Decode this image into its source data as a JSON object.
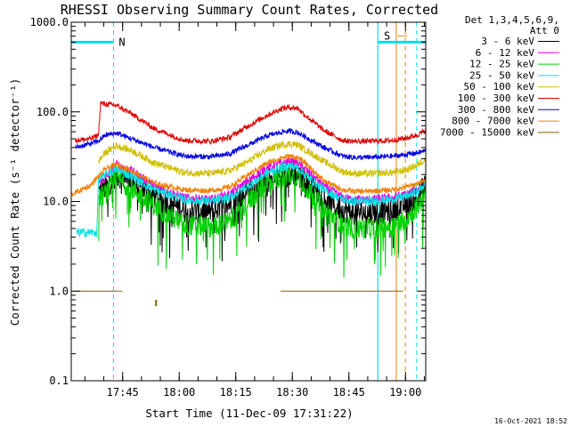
{
  "chart_data": {
    "type": "line",
    "title": "RHESSI Observing Summary Count Rates, Corrected",
    "xlabel": "Start Time (11-Dec-09 17:31:22)",
    "ylabel": "Corrected Count Rate (s⁻¹ detector⁻¹)",
    "yscale": "log",
    "ylim": [
      0.1,
      1000.0
    ],
    "xlim_minutes": [
      0,
      94
    ],
    "x_ticks": [
      {
        "label": "17:45",
        "minutes": 13.63
      },
      {
        "label": "18:00",
        "minutes": 28.63
      },
      {
        "label": "18:15",
        "minutes": 43.63
      },
      {
        "label": "18:30",
        "minutes": 58.63
      },
      {
        "label": "18:45",
        "minutes": 73.63
      },
      {
        "label": "19:00",
        "minutes": 88.63
      }
    ],
    "y_ticks": [
      {
        "label": "0.1",
        "value": 0.1
      },
      {
        "label": "1.0",
        "value": 1.0
      },
      {
        "label": "10.0",
        "value": 10.0
      },
      {
        "label": "100.0",
        "value": 100.0
      },
      {
        "label": "1000.0",
        "value": 1000.0
      }
    ],
    "legend": {
      "header": [
        "Det 1,3,4,5,6,9,",
        "Att 0"
      ],
      "placement": "right"
    },
    "series": [
      {
        "name": "3 - 6 keV",
        "color": "#000000",
        "noise": 0.14,
        "spikes": 0.1,
        "spike_depth": 0.55,
        "x": [
          0,
          6.8,
          7.2,
          9,
          12,
          16,
          22,
          30,
          37,
          42,
          47,
          52,
          56,
          58,
          60,
          62,
          67,
          72,
          75,
          79,
          85,
          89,
          92,
          94
        ],
        "y": [
          null,
          null,
          13,
          14,
          20,
          17,
          11.5,
          8,
          7.8,
          9.5,
          13,
          17,
          19.5,
          20,
          19.5,
          17,
          11,
          8,
          7.5,
          7.5,
          8,
          9.5,
          12,
          15
        ]
      },
      {
        "name": "6 - 12 keV",
        "color": "#e000e0",
        "noise": 0.05,
        "spikes": 0,
        "spike_depth": 0,
        "x": [
          0,
          6.8,
          7.2,
          9,
          12,
          16,
          22,
          30,
          37,
          42,
          47,
          52,
          56,
          58,
          60,
          62,
          67,
          72,
          75,
          79,
          85,
          89,
          92,
          94
        ],
        "y": [
          null,
          null,
          16,
          18,
          26,
          22,
          15,
          11,
          10.5,
          12,
          17,
          24,
          27,
          28,
          27,
          23,
          15,
          11,
          10.5,
          10.5,
          11,
          12,
          14,
          16
        ]
      },
      {
        "name": "12 - 25 keV",
        "color": "#00d000",
        "noise": 0.12,
        "spikes": 0.1,
        "spike_depth": 0.6,
        "x": [
          0,
          6.8,
          7.2,
          9,
          12,
          16,
          22,
          30,
          37,
          42,
          47,
          52,
          56,
          58,
          60,
          62,
          67,
          72,
          75,
          79,
          85,
          89,
          92,
          94
        ],
        "y": [
          null,
          null,
          11,
          12,
          18,
          14,
          9,
          5.5,
          5.2,
          6,
          10,
          16,
          19,
          20,
          19,
          15,
          8,
          5.5,
          5,
          5,
          5.3,
          6.5,
          9,
          13
        ]
      },
      {
        "name": "25 - 50 keV",
        "color": "#00e0e0",
        "noise": 0.05,
        "spikes": 0,
        "spike_depth": 0,
        "x": [
          0,
          1.5,
          6.8,
          7.2,
          9,
          12,
          16,
          22,
          30,
          37,
          42,
          47,
          52,
          56,
          58,
          60,
          62,
          67,
          72,
          75,
          79,
          85,
          89,
          92,
          94
        ],
        "y": [
          null,
          4.5,
          4.5,
          17,
          20,
          23,
          19,
          13.5,
          10.5,
          10,
          11,
          15,
          21,
          24,
          25,
          24,
          20,
          13.5,
          10.5,
          10,
          10,
          10.5,
          11.5,
          13,
          16
        ]
      },
      {
        "name": "50 - 100 keV",
        "color": "#d0c000",
        "noise": 0.04,
        "spikes": 0,
        "spike_depth": 0,
        "x": [
          0,
          6.8,
          7.2,
          9,
          12,
          16,
          22,
          30,
          37,
          42,
          47,
          52,
          56,
          58,
          60,
          62,
          67,
          72,
          75,
          79,
          85,
          89,
          92,
          94
        ],
        "y": [
          null,
          null,
          28,
          35,
          42,
          37,
          27,
          21,
          20.5,
          22,
          28,
          38,
          43,
          44,
          43,
          38,
          28,
          21.5,
          20.5,
          20.5,
          21,
          22.5,
          26,
          30
        ]
      },
      {
        "name": "100 - 300 keV",
        "color": "#e00000",
        "noise": 0.03,
        "spikes": 0,
        "spike_depth": 0,
        "x": [
          0,
          1,
          5,
          7.2,
          7.8,
          9,
          12,
          16,
          22,
          30,
          37,
          42,
          47,
          52,
          56,
          58,
          60,
          62,
          67,
          72,
          75,
          79,
          85,
          89,
          92,
          94
        ],
        "y": [
          null,
          48,
          50,
          55,
          125,
          122,
          118,
          95,
          65,
          48,
          47,
          52,
          70,
          92,
          110,
          112,
          110,
          92,
          62,
          48,
          47,
          47,
          48,
          51,
          56,
          62
        ]
      },
      {
        "name": "300 - 800 keV",
        "color": "#0000e0",
        "noise": 0.03,
        "spikes": 0,
        "spike_depth": 0,
        "x": [
          0,
          1,
          5,
          7.2,
          9,
          12,
          16,
          22,
          30,
          37,
          42,
          47,
          52,
          56,
          58,
          60,
          62,
          67,
          72,
          75,
          79,
          85,
          89,
          92,
          94
        ],
        "y": [
          null,
          40,
          44,
          47,
          55,
          58,
          50,
          40,
          32,
          31.5,
          34,
          43,
          54,
          60,
          61,
          59,
          53,
          40,
          32,
          31,
          31,
          32,
          33.5,
          35,
          37
        ]
      },
      {
        "name": "800 - 7000 keV",
        "color": "#f08000",
        "noise": 0.03,
        "spikes": 0,
        "spike_depth": 0,
        "x": [
          0,
          1,
          5,
          7.2,
          9,
          12,
          16,
          22,
          30,
          37,
          42,
          47,
          52,
          56,
          58,
          60,
          62,
          67,
          72,
          75,
          79,
          85,
          89,
          92,
          94
        ],
        "y": [
          12,
          12.5,
          15,
          19,
          23,
          26,
          22,
          16,
          13.5,
          13.2,
          14.5,
          20,
          27,
          31,
          32,
          31,
          27,
          17,
          13.5,
          13,
          13,
          13.5,
          14.5,
          16,
          17
        ]
      },
      {
        "name": "7000 - 15000 keV",
        "color": "#806000",
        "noise": 0,
        "spikes": 0,
        "spike_depth": 0,
        "x": [
          0,
          0.5,
          13.5,
          48.5,
          55.5,
          88,
          89.5
        ],
        "y": [
          null,
          1.0,
          1.0,
          null,
          1.0,
          1.0,
          null
        ]
      }
    ],
    "annotations": [
      {
        "text": "N",
        "kind": "night",
        "color": "#00e0e0",
        "line_minutes": 11.2,
        "bar_start_minutes": 0,
        "bar_end_minutes": 11.2,
        "level": 600
      },
      {
        "text": "S",
        "kind": "saa",
        "color": "#f08000",
        "line_minutes": 86.2,
        "line2_minutes": 88.6,
        "level": 600
      },
      {
        "text": "",
        "kind": "night",
        "color": "#00e0e0",
        "line_minutes": 81.3,
        "line2_minutes": 91.6,
        "bar_start_minutes": 81.3,
        "bar_end_minutes": 94,
        "level": 600
      }
    ]
  },
  "footer": {
    "timestamp": "16-Oct-2021 18:52"
  }
}
